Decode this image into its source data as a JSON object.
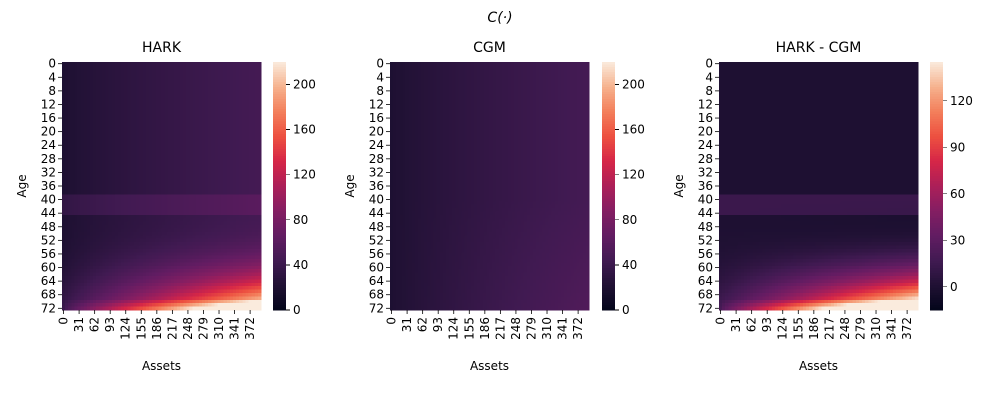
{
  "figure": {
    "suptitle": "C(·)"
  },
  "chart_data": [
    {
      "type": "heatmap",
      "title": "HARK",
      "xlabel": "Assets",
      "ylabel": "Age",
      "x_tick_labels": [
        "0",
        "31",
        "62",
        "93",
        "124",
        "155",
        "186",
        "217",
        "248",
        "279",
        "310",
        "341",
        "372"
      ],
      "y_tick_labels": [
        "0",
        "4",
        "8",
        "12",
        "16",
        "20",
        "24",
        "28",
        "32",
        "36",
        "40",
        "44",
        "48",
        "52",
        "56",
        "60",
        "64",
        "68",
        "72"
      ],
      "colorbar_ticks": [
        "0",
        "40",
        "80",
        "120",
        "160",
        "200"
      ],
      "colorbar_range": [
        0,
        220
      ],
      "colormap": "rocket"
    },
    {
      "type": "heatmap",
      "title": "CGM",
      "xlabel": "Assets",
      "ylabel": "Age",
      "x_tick_labels": [
        "0",
        "31",
        "62",
        "93",
        "124",
        "155",
        "186",
        "217",
        "248",
        "279",
        "310",
        "341",
        "372"
      ],
      "y_tick_labels": [
        "0",
        "4",
        "8",
        "12",
        "16",
        "20",
        "24",
        "28",
        "32",
        "36",
        "40",
        "44",
        "48",
        "52",
        "56",
        "60",
        "64",
        "68",
        "72"
      ],
      "colorbar_ticks": [
        "0",
        "40",
        "80",
        "120",
        "160",
        "200"
      ],
      "colorbar_range": [
        0,
        220
      ],
      "colormap": "rocket"
    },
    {
      "type": "heatmap",
      "title": "HARK - CGM",
      "xlabel": "Assets",
      "ylabel": "Age",
      "x_tick_labels": [
        "0",
        "31",
        "62",
        "93",
        "124",
        "155",
        "186",
        "217",
        "248",
        "279",
        "310",
        "341",
        "372"
      ],
      "y_tick_labels": [
        "0",
        "4",
        "8",
        "12",
        "16",
        "20",
        "24",
        "28",
        "32",
        "36",
        "40",
        "44",
        "48",
        "52",
        "56",
        "60",
        "64",
        "68",
        "72"
      ],
      "colorbar_ticks": [
        "0",
        "30",
        "60",
        "90",
        "120"
      ],
      "colorbar_range": [
        -15,
        145
      ],
      "colormap": "rocket"
    }
  ]
}
